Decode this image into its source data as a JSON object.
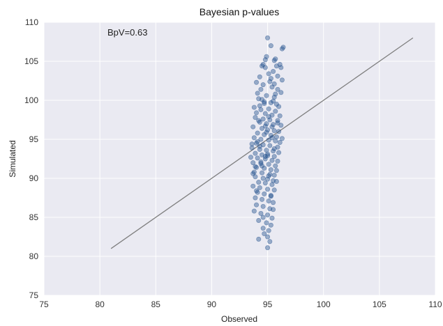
{
  "chart_data": {
    "type": "scatter",
    "title": "Bayesian p-values",
    "xlabel": "Observed",
    "ylabel": "Simulated",
    "xlim": [
      75,
      110
    ],
    "ylim": [
      75,
      110
    ],
    "xticks": [
      "75",
      "80",
      "85",
      "90",
      "95",
      "100",
      "105",
      "110"
    ],
    "yticks": [
      "75",
      "80",
      "85",
      "90",
      "95",
      "100",
      "105",
      "110"
    ],
    "grid": true,
    "annotation": "BpV=0.63",
    "reference_line": {
      "x": [
        81,
        108
      ],
      "y": [
        81,
        108
      ],
      "color": "#7f7f7f"
    },
    "series": [
      {
        "color": "#1f4e8c",
        "points": [
          [
            95.0,
            108.0
          ],
          [
            95.3,
            107.0
          ],
          [
            96.4,
            106.8
          ],
          [
            96.3,
            106.6
          ],
          [
            94.9,
            105.6
          ],
          [
            94.8,
            105.2
          ],
          [
            95.6,
            105.1
          ],
          [
            95.7,
            105.3
          ],
          [
            94.6,
            104.6
          ],
          [
            94.5,
            104.4
          ],
          [
            94.8,
            104.2
          ],
          [
            95.8,
            104.4
          ],
          [
            96.1,
            104.6
          ],
          [
            96.2,
            104.2
          ],
          [
            95.5,
            103.7
          ],
          [
            95.1,
            103.4
          ],
          [
            94.3,
            103.0
          ],
          [
            95.3,
            102.8
          ],
          [
            95.9,
            103.1
          ],
          [
            96.3,
            102.6
          ],
          [
            94.0,
            102.3
          ],
          [
            94.6,
            102.0
          ],
          [
            95.6,
            102.1
          ],
          [
            95.4,
            101.7
          ],
          [
            94.4,
            101.4
          ],
          [
            95.9,
            101.4
          ],
          [
            96.2,
            101.0
          ],
          [
            94.1,
            100.9
          ],
          [
            94.9,
            100.6
          ],
          [
            95.6,
            100.4
          ],
          [
            94.2,
            100.2
          ],
          [
            94.5,
            100.1
          ],
          [
            94.7,
            99.8
          ],
          [
            95.3,
            99.7
          ],
          [
            95.5,
            99.9
          ],
          [
            95.8,
            99.5
          ],
          [
            96.0,
            99.2
          ],
          [
            93.8,
            99.1
          ],
          [
            94.4,
            98.8
          ],
          [
            95.1,
            98.9
          ],
          [
            95.7,
            98.6
          ],
          [
            94.0,
            98.4
          ],
          [
            94.8,
            98.3
          ],
          [
            95.4,
            98.1
          ],
          [
            96.1,
            98.0
          ],
          [
            93.9,
            97.8
          ],
          [
            94.6,
            97.6
          ],
          [
            95.2,
            97.5
          ],
          [
            95.9,
            97.4
          ],
          [
            94.3,
            97.2
          ],
          [
            94.9,
            97.0
          ],
          [
            95.5,
            96.9
          ],
          [
            96.2,
            96.8
          ],
          [
            93.7,
            96.6
          ],
          [
            94.5,
            96.4
          ],
          [
            95.0,
            96.2
          ],
          [
            95.6,
            96.1
          ],
          [
            96.0,
            96.0
          ],
          [
            94.1,
            95.8
          ],
          [
            94.7,
            95.6
          ],
          [
            95.3,
            95.5
          ],
          [
            95.8,
            95.3
          ],
          [
            93.8,
            95.2
          ],
          [
            94.4,
            95.0
          ],
          [
            95.1,
            94.9
          ],
          [
            95.7,
            94.8
          ],
          [
            96.1,
            94.6
          ],
          [
            94.0,
            94.5
          ],
          [
            94.6,
            94.3
          ],
          [
            95.2,
            94.2
          ],
          [
            95.9,
            94.0
          ],
          [
            93.6,
            93.9
          ],
          [
            94.3,
            93.7
          ],
          [
            94.9,
            93.6
          ],
          [
            95.5,
            93.5
          ],
          [
            96.0,
            93.3
          ],
          [
            93.9,
            93.2
          ],
          [
            94.5,
            93.0
          ],
          [
            95.0,
            92.9
          ],
          [
            95.6,
            92.8
          ],
          [
            94.1,
            92.6
          ],
          [
            94.8,
            92.5
          ],
          [
            95.4,
            92.3
          ],
          [
            95.9,
            92.2
          ],
          [
            93.7,
            92.0
          ],
          [
            94.4,
            91.9
          ],
          [
            95.1,
            91.8
          ],
          [
            95.7,
            91.6
          ],
          [
            94.0,
            91.4
          ],
          [
            94.7,
            91.3
          ],
          [
            95.3,
            91.1
          ],
          [
            95.8,
            91.0
          ],
          [
            93.8,
            90.8
          ],
          [
            94.5,
            90.7
          ],
          [
            95.2,
            90.5
          ],
          [
            95.6,
            90.4
          ],
          [
            93.9,
            90.2
          ],
          [
            94.6,
            90.0
          ],
          [
            95.0,
            89.9
          ],
          [
            95.5,
            89.7
          ],
          [
            94.2,
            89.5
          ],
          [
            94.8,
            89.4
          ],
          [
            95.4,
            89.2
          ],
          [
            93.7,
            89.0
          ],
          [
            94.3,
            88.8
          ],
          [
            95.0,
            88.6
          ],
          [
            95.6,
            88.5
          ],
          [
            94.1,
            88.2
          ],
          [
            94.7,
            88.0
          ],
          [
            95.3,
            87.8
          ],
          [
            93.9,
            87.5
          ],
          [
            94.5,
            87.3
          ],
          [
            95.1,
            87.1
          ],
          [
            95.5,
            86.9
          ],
          [
            94.0,
            86.6
          ],
          [
            94.6,
            86.4
          ],
          [
            95.2,
            86.1
          ],
          [
            93.8,
            85.8
          ],
          [
            94.4,
            85.5
          ],
          [
            95.0,
            85.3
          ],
          [
            95.4,
            84.9
          ],
          [
            94.2,
            84.6
          ],
          [
            94.9,
            84.3
          ],
          [
            95.3,
            84.0
          ],
          [
            94.6,
            83.6
          ],
          [
            95.1,
            83.3
          ],
          [
            94.7,
            82.9
          ],
          [
            95.0,
            82.5
          ],
          [
            94.2,
            82.2
          ],
          [
            95.2,
            81.9
          ],
          [
            95.0,
            81.1
          ],
          [
            95.5,
            86.0
          ],
          [
            93.9,
            91.5
          ],
          [
            94.2,
            97.4
          ],
          [
            95.7,
            100.8
          ],
          [
            93.6,
            94.4
          ],
          [
            94.3,
            99.3
          ],
          [
            95.4,
            96.6
          ],
          [
            94.8,
            92.8
          ],
          [
            95.1,
            90.3
          ],
          [
            96.3,
            95.1
          ],
          [
            93.5,
            92.7
          ],
          [
            94.0,
            88.4
          ],
          [
            95.8,
            89.6
          ],
          [
            94.6,
            85.0
          ],
          [
            95.3,
            87.7
          ],
          [
            94.9,
            95.9
          ],
          [
            94.4,
            92.1
          ],
          [
            95.6,
            93.8
          ],
          [
            94.1,
            94.7
          ],
          [
            93.7,
            90.6
          ],
          [
            95.9,
            97.1
          ],
          [
            94.7,
            99.6
          ],
          [
            95.2,
            102.4
          ],
          [
            94.5,
            91.6
          ],
          [
            95.0,
            93.1
          ],
          [
            94.8,
            96.7
          ],
          [
            95.4,
            95.2
          ],
          [
            94.3,
            94.1
          ],
          [
            95.1,
            97.9
          ]
        ]
      }
    ]
  }
}
